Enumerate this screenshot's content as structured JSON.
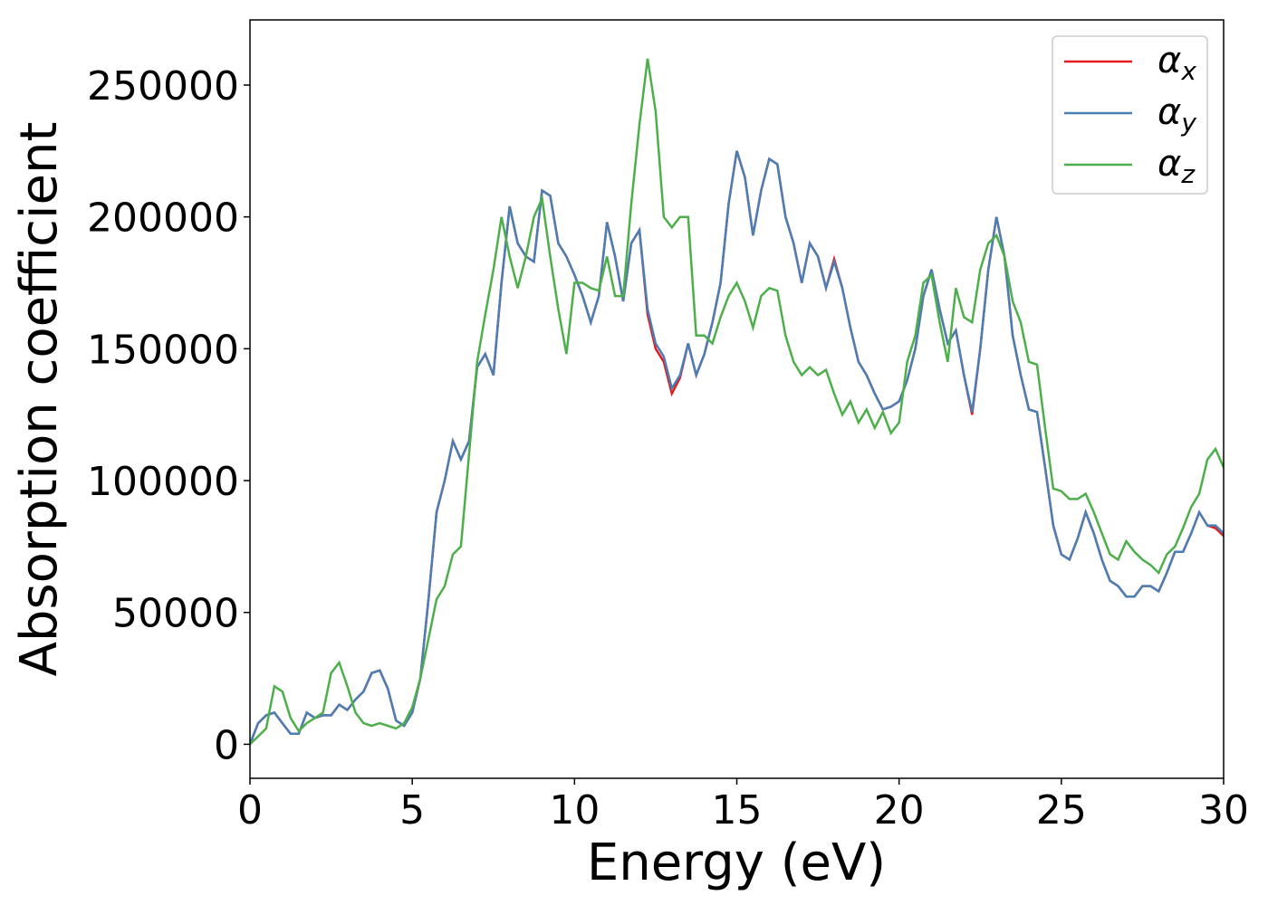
{
  "chart_data": {
    "type": "line",
    "xlabel": "Energy (eV)",
    "ylabel": "Absorption coefficient",
    "x": [
      0,
      0.25,
      0.5,
      0.75,
      1,
      1.25,
      1.5,
      1.75,
      2,
      2.25,
      2.5,
      2.75,
      3,
      3.25,
      3.5,
      3.75,
      4,
      4.25,
      4.5,
      4.75,
      5,
      5.25,
      5.5,
      5.75,
      6,
      6.25,
      6.5,
      6.75,
      7,
      7.25,
      7.5,
      7.75,
      8,
      8.25,
      8.5,
      8.75,
      9,
      9.25,
      9.5,
      9.75,
      10,
      10.25,
      10.5,
      10.75,
      11,
      11.25,
      11.5,
      11.75,
      12,
      12.25,
      12.5,
      12.75,
      13,
      13.25,
      13.5,
      13.75,
      14,
      14.25,
      14.5,
      14.75,
      15,
      15.25,
      15.5,
      15.75,
      16,
      16.25,
      16.5,
      16.75,
      17,
      17.25,
      17.5,
      17.75,
      18,
      18.25,
      18.5,
      18.75,
      19,
      19.25,
      19.5,
      19.75,
      20,
      20.25,
      20.5,
      20.75,
      21,
      21.25,
      21.5,
      21.75,
      22,
      22.25,
      22.5,
      22.75,
      23,
      23.25,
      23.5,
      23.75,
      24,
      24.25,
      24.5,
      24.75,
      25,
      25.25,
      25.5,
      25.75,
      26,
      26.25,
      26.5,
      26.75,
      27,
      27.25,
      27.5,
      27.75,
      28,
      28.25,
      28.5,
      28.75,
      29,
      29.25,
      29.5,
      29.75,
      30
    ],
    "series": [
      {
        "name": "αx",
        "color": "#e41a1c",
        "values": [
          0,
          8000,
          11000,
          12000,
          8000,
          4000,
          4000,
          12000,
          10000,
          11000,
          11000,
          15000,
          13000,
          17000,
          20000,
          27000,
          28000,
          21000,
          9000,
          7000,
          12000,
          25000,
          55000,
          88000,
          100000,
          115000,
          108000,
          115000,
          143000,
          148000,
          140000,
          175000,
          204000,
          190000,
          185000,
          183000,
          210000,
          208000,
          190000,
          185000,
          178000,
          170000,
          160000,
          170000,
          198000,
          185000,
          168000,
          190000,
          195000,
          163000,
          150000,
          145000,
          133000,
          139000,
          152000,
          140000,
          148000,
          160000,
          175000,
          205000,
          225000,
          215000,
          193000,
          210000,
          222000,
          220000,
          200000,
          190000,
          175000,
          190000,
          185000,
          173000,
          184000,
          173000,
          158000,
          145000,
          140000,
          133000,
          127000,
          128000,
          130000,
          138000,
          150000,
          170000,
          180000,
          165000,
          152000,
          157000,
          140000,
          125000,
          150000,
          180000,
          200000,
          185000,
          155000,
          140000,
          127000,
          126000,
          105000,
          83000,
          72000,
          70000,
          78000,
          88000,
          80000,
          70000,
          62000,
          60000,
          56000,
          56000,
          60000,
          60000,
          58000,
          65000,
          73000,
          73000,
          80000,
          88000,
          83000,
          82000,
          79000
        ]
      },
      {
        "name": "αy",
        "color": "#4a7fb5",
        "values": [
          0,
          8000,
          11000,
          12000,
          8000,
          4000,
          4000,
          12000,
          10000,
          11000,
          11000,
          15000,
          13000,
          17000,
          20000,
          27000,
          28000,
          21000,
          9000,
          7000,
          12000,
          25000,
          55000,
          88000,
          100000,
          115000,
          108000,
          115000,
          143000,
          148000,
          140000,
          175000,
          204000,
          190000,
          185000,
          183000,
          210000,
          208000,
          190000,
          185000,
          178000,
          170000,
          160000,
          170000,
          198000,
          185000,
          168000,
          190000,
          195000,
          165000,
          152000,
          147000,
          135000,
          140000,
          152000,
          140000,
          148000,
          160000,
          175000,
          205000,
          225000,
          215000,
          193000,
          210000,
          222000,
          220000,
          200000,
          190000,
          175000,
          190000,
          185000,
          173000,
          183000,
          173000,
          158000,
          145000,
          140000,
          133000,
          127000,
          128000,
          130000,
          138000,
          150000,
          170000,
          180000,
          165000,
          152000,
          157000,
          140000,
          126000,
          150000,
          180000,
          200000,
          185000,
          155000,
          140000,
          127000,
          126000,
          105000,
          83000,
          72000,
          70000,
          78000,
          88000,
          80000,
          70000,
          62000,
          60000,
          56000,
          56000,
          60000,
          60000,
          58000,
          65000,
          73000,
          73000,
          80000,
          88000,
          83000,
          83000,
          80000
        ]
      },
      {
        "name": "αz",
        "color": "#4daf4a",
        "values": [
          0,
          3000,
          6000,
          22000,
          20000,
          10000,
          5000,
          8000,
          10000,
          12000,
          27000,
          31000,
          22000,
          12000,
          8000,
          7000,
          8000,
          7000,
          6000,
          8000,
          14000,
          25000,
          40000,
          55000,
          60000,
          72000,
          75000,
          110000,
          145000,
          163000,
          180000,
          200000,
          185000,
          173000,
          185000,
          200000,
          207000,
          185000,
          165000,
          148000,
          175000,
          175000,
          173000,
          172000,
          185000,
          170000,
          170000,
          205000,
          235000,
          260000,
          240000,
          200000,
          196000,
          200000,
          200000,
          155000,
          155000,
          152000,
          162000,
          170000,
          175000,
          168000,
          158000,
          170000,
          173000,
          172000,
          155000,
          145000,
          140000,
          143000,
          140000,
          142000,
          133000,
          125000,
          130000,
          122000,
          127000,
          120000,
          126000,
          118000,
          122000,
          145000,
          155000,
          175000,
          178000,
          160000,
          145000,
          173000,
          162000,
          160000,
          180000,
          190000,
          193000,
          185000,
          168000,
          160000,
          145000,
          144000,
          120000,
          97000,
          96000,
          93000,
          93000,
          95000,
          88000,
          80000,
          72000,
          70000,
          77000,
          73000,
          70000,
          68000,
          65000,
          72000,
          75000,
          82000,
          90000,
          95000,
          108000,
          112000,
          105000
        ]
      }
    ],
    "xlim": [
      0,
      30
    ],
    "xticks": [
      0,
      5,
      10,
      15,
      20,
      25,
      30
    ],
    "ylim": [
      -12900,
      274700
    ],
    "yticks": [
      0,
      50000,
      100000,
      150000,
      200000,
      250000
    ],
    "legend": "upper right"
  }
}
